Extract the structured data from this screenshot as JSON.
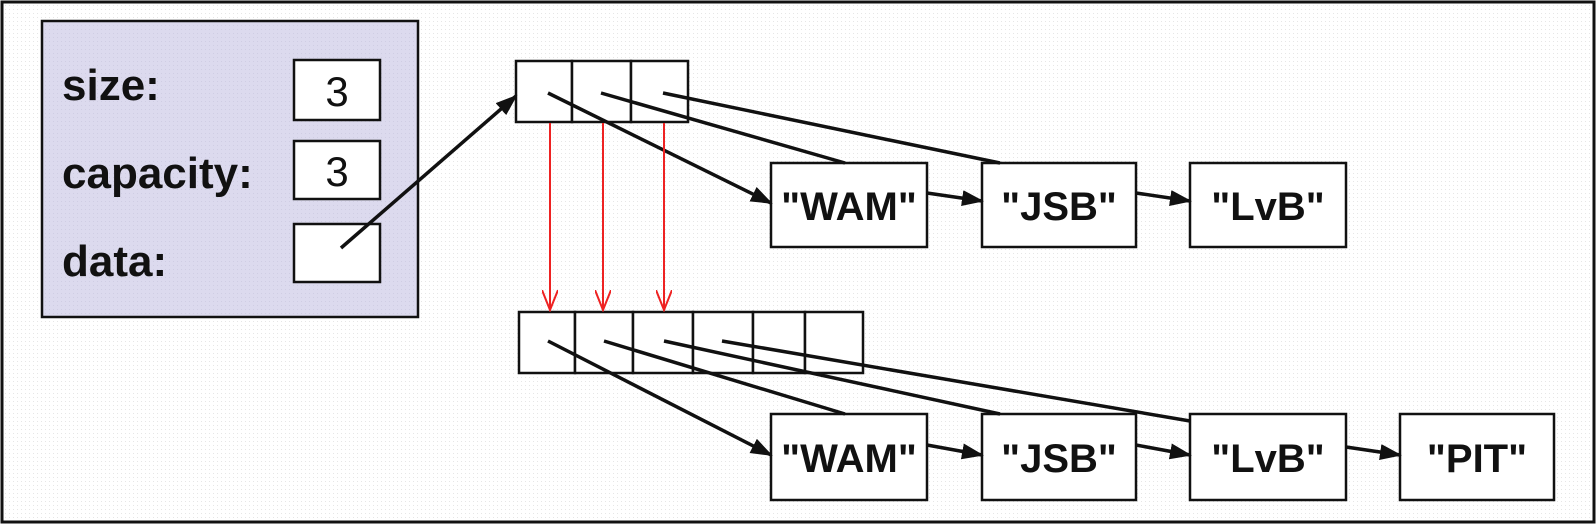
{
  "struct": {
    "fields": [
      {
        "label": "size:",
        "value": "3"
      },
      {
        "label": "capacity:",
        "value": "3"
      },
      {
        "label": "data:",
        "value": ""
      }
    ]
  },
  "old_list": [
    "\"WAM\"",
    "\"JSB\"",
    "\"LvB\""
  ],
  "new_list": [
    "\"WAM\"",
    "\"JSB\"",
    "\"LvB\"",
    "\"PIT\""
  ],
  "old_array_slots": 3,
  "new_array_slots": 6,
  "colors": {
    "panel_fill": "#dcdaee",
    "border": "#111111",
    "copy_arrow": "#ee2222"
  }
}
